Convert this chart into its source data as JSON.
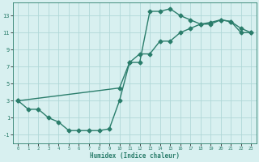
{
  "xlabel": "Humidex (Indice chaleur)",
  "line1_x": [
    0,
    1,
    2,
    3,
    4,
    5,
    6,
    7,
    8,
    9,
    10,
    11,
    12,
    13,
    14,
    15,
    16,
    17,
    18,
    19,
    20,
    21,
    22,
    23
  ],
  "line1_y": [
    3,
    2,
    2,
    1,
    0.5,
    -0.5,
    -0.5,
    -0.5,
    -0.5,
    -0.3,
    3,
    7.5,
    7.5,
    13.5,
    13.5,
    13.8,
    13,
    12.5,
    12,
    12.2,
    12.5,
    12.3,
    11,
    11
  ],
  "line2_x": [
    0,
    10,
    11,
    12,
    13,
    14,
    15,
    16,
    17,
    18,
    19,
    20,
    21,
    22,
    23
  ],
  "line2_y": [
    3,
    4.5,
    7.5,
    8.5,
    8.5,
    10,
    10,
    11,
    11.5,
    12,
    12,
    12.5,
    12.3,
    11.5,
    11
  ],
  "line_color": "#2a7d6b",
  "bg_color": "#d8f0f0",
  "grid_color": "#b0d8d8",
  "xlim_min": -0.5,
  "xlim_max": 23.5,
  "ylim_min": -2,
  "ylim_max": 14.5,
  "xticks": [
    0,
    1,
    2,
    3,
    4,
    5,
    6,
    7,
    8,
    9,
    10,
    11,
    12,
    13,
    14,
    15,
    16,
    17,
    18,
    19,
    20,
    21,
    22,
    23
  ],
  "yticks": [
    -1,
    1,
    3,
    5,
    7,
    9,
    11,
    13
  ],
  "markersize": 2.5,
  "linewidth": 1.0
}
